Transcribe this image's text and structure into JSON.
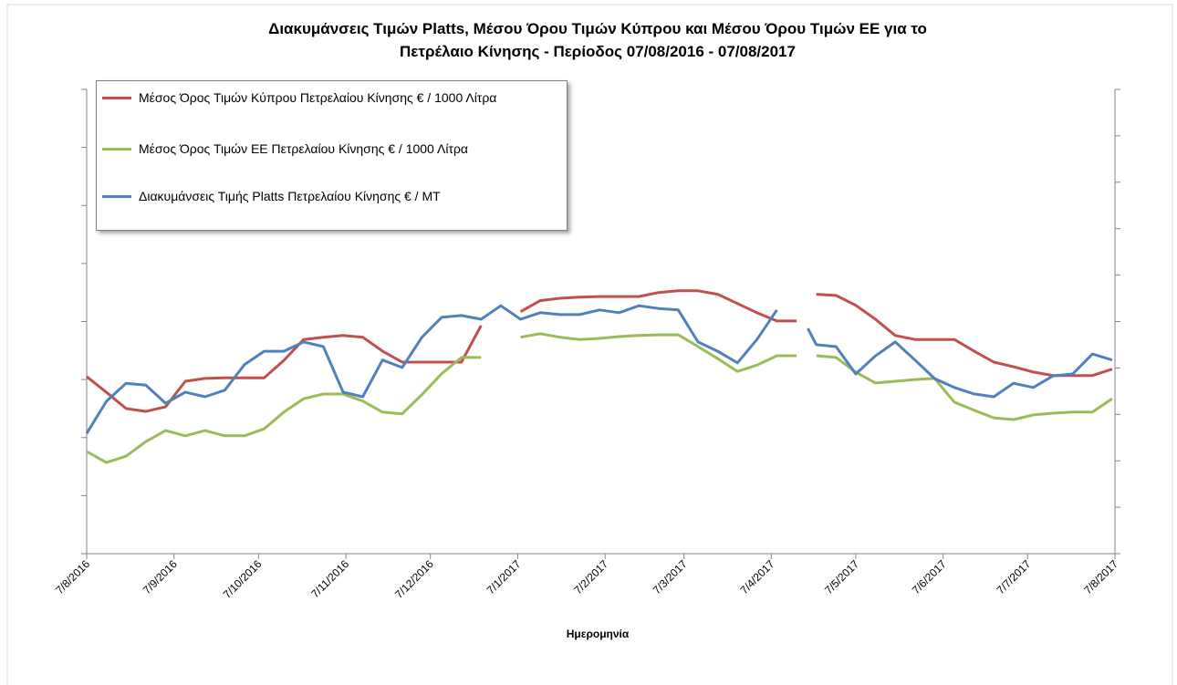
{
  "chart_data": {
    "type": "line",
    "title": "Διακυμάνσεις Τιμών Platts, Μέσου Όρου Τιμών Κύπρου και Μέσου Όρου Τιμών ΕΕ για το",
    "subtitle": "Πετρέλαιο Κίνησης - Περίοδος  07/08/2016 - 07/08/2017",
    "x_label": "Ημερομηνία",
    "x": [
      0,
      7,
      14,
      21,
      28,
      35,
      42,
      49,
      56,
      63,
      70,
      77,
      84,
      91,
      98,
      105,
      112,
      119,
      126,
      133,
      140,
      147,
      154,
      161,
      168,
      175,
      182,
      189,
      196,
      203,
      210,
      217,
      224,
      231,
      238,
      245,
      252,
      256,
      259,
      266,
      273,
      280,
      287,
      294,
      301,
      308,
      315,
      322,
      329,
      336,
      343,
      350,
      357,
      364
    ],
    "xlim": [
      0,
      365
    ],
    "xticks": [
      {
        "value": 0,
        "label": "7/8/2016"
      },
      {
        "value": 31,
        "label": "7/9/2016"
      },
      {
        "value": 61,
        "label": "7/10/2016"
      },
      {
        "value": 92,
        "label": "7/11/2016"
      },
      {
        "value": 122,
        "label": "7/12/2016"
      },
      {
        "value": 153,
        "label": "7/1/2017"
      },
      {
        "value": 184,
        "label": "7/2/2017"
      },
      {
        "value": 212,
        "label": "7/3/2017"
      },
      {
        "value": 243,
        "label": "7/4/2017"
      },
      {
        "value": 273,
        "label": "7/5/2017"
      },
      {
        "value": 304,
        "label": "7/6/2017"
      },
      {
        "value": 334,
        "label": "7/7/2017"
      },
      {
        "value": 365,
        "label": "7/8/2017"
      }
    ],
    "ylim": [
      0,
      8
    ],
    "yticks": [
      0,
      1,
      2,
      3,
      4,
      5,
      6,
      7,
      8
    ],
    "y2lim": [
      0,
      10
    ],
    "y2ticks": [
      0,
      1,
      2,
      3,
      4,
      5,
      6,
      7,
      8,
      9,
      10
    ],
    "legend": "top-left",
    "series": [
      {
        "name": "Μέσος Όρος Τιμών  Κύπρου Πετρελαίου Κίνησης  € / 1000 Λίτρα",
        "color": "#c0504d",
        "values": [
          3.05,
          2.78,
          2.5,
          2.45,
          2.53,
          2.97,
          3.02,
          3.03,
          3.03,
          3.03,
          3.33,
          3.69,
          3.73,
          3.76,
          3.73,
          3.49,
          3.3,
          3.3,
          3.3,
          3.3,
          3.93,
          null,
          4.17,
          4.36,
          4.4,
          4.42,
          4.43,
          4.43,
          4.43,
          4.5,
          4.53,
          4.53,
          4.47,
          4.31,
          4.15,
          4.01,
          4.01,
          null,
          4.47,
          4.45,
          4.28,
          4.04,
          3.76,
          3.69,
          3.69,
          3.69,
          3.49,
          3.3,
          3.22,
          3.13,
          3.07,
          3.07,
          3.07,
          3.18
        ]
      },
      {
        "name": "Μέσος Όρος Τιμών ΕΕ Πετρελαίου Κίνησης  € / 1000  Λίτρα",
        "color": "#9bbb59",
        "values": [
          1.76,
          1.57,
          1.68,
          1.93,
          2.12,
          2.03,
          2.12,
          2.03,
          2.03,
          2.15,
          2.44,
          2.67,
          2.75,
          2.75,
          2.63,
          2.44,
          2.41,
          2.74,
          3.1,
          3.38,
          3.38,
          null,
          3.73,
          3.79,
          3.73,
          3.69,
          3.71,
          3.74,
          3.76,
          3.77,
          3.77,
          3.57,
          3.36,
          3.14,
          3.25,
          3.41,
          3.41,
          null,
          3.41,
          3.38,
          3.13,
          2.94,
          2.97,
          3.0,
          3.02,
          2.61,
          2.47,
          2.34,
          2.31,
          2.39,
          2.42,
          2.44,
          2.44,
          2.67
        ]
      },
      {
        "name": "Διακυμάνσεις Τιμής Platts Πετρελαίου Κίνησης € / MT",
        "color": "#4f81bd",
        "axis": "y2",
        "values": [
          2.59,
          3.28,
          3.67,
          3.63,
          3.24,
          3.48,
          3.38,
          3.52,
          4.07,
          4.36,
          4.36,
          4.56,
          4.46,
          3.48,
          3.38,
          4.17,
          4.01,
          4.66,
          5.09,
          5.13,
          5.05,
          5.34,
          5.05,
          5.19,
          5.15,
          5.15,
          5.25,
          5.19,
          5.34,
          5.28,
          5.25,
          4.56,
          4.36,
          4.11,
          4.62,
          5.25,
          null,
          4.85,
          4.5,
          4.46,
          3.87,
          4.26,
          4.56,
          4.17,
          3.77,
          3.58,
          3.44,
          3.38,
          3.67,
          3.58,
          3.83,
          3.87,
          4.3,
          4.17
        ]
      }
    ]
  }
}
